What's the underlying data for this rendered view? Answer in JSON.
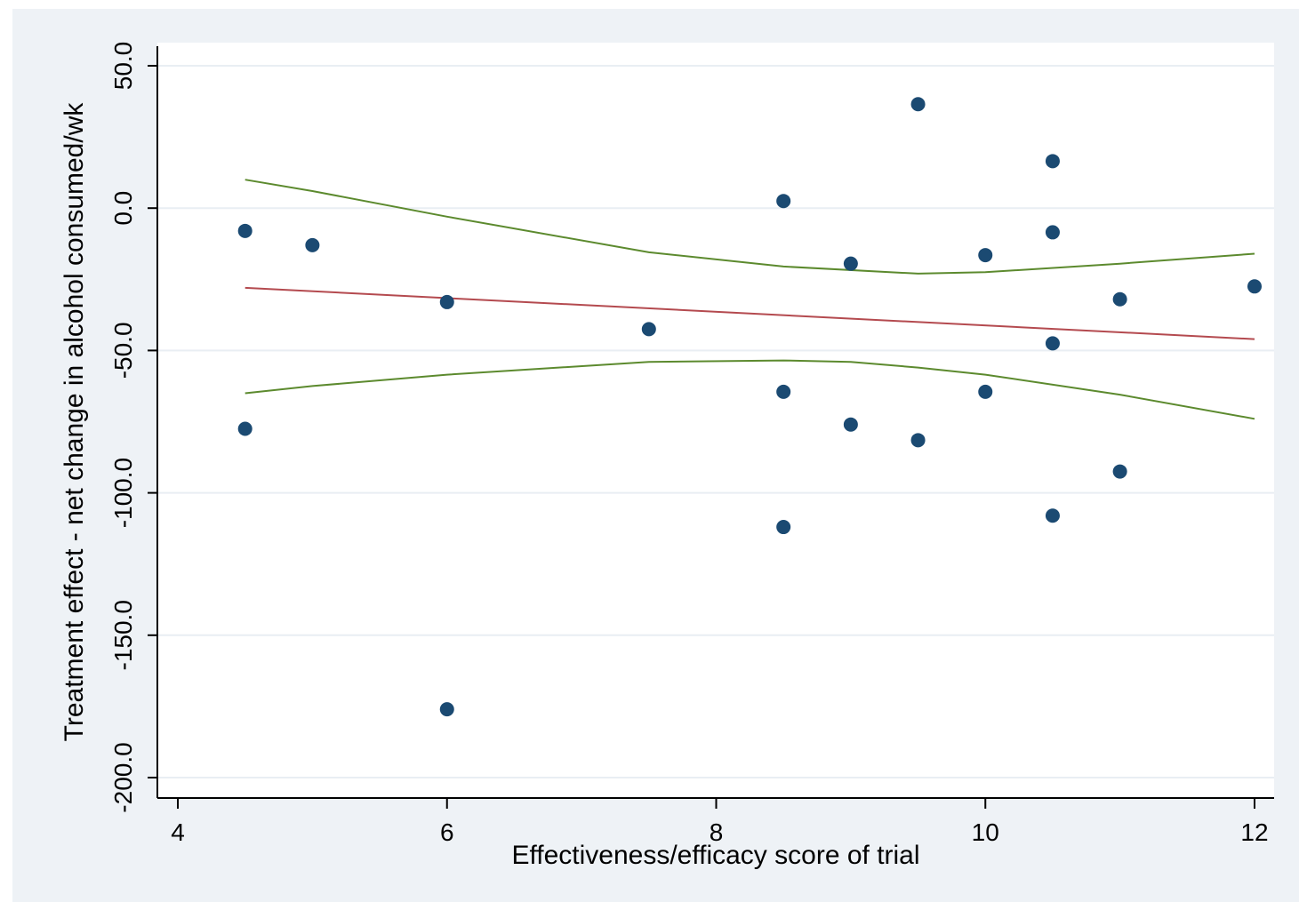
{
  "chart_data": {
    "type": "scatter",
    "xlabel": "Effectiveness/efficacy score of trial",
    "ylabel": "Treatment effect - net change in alcohol consumed/wk",
    "xlim": [
      3.7,
      12.2
    ],
    "ylim": [
      -208,
      58
    ],
    "x_ticks": [
      4,
      6,
      8,
      10,
      12
    ],
    "x_tick_labels": [
      "4",
      "6",
      "8",
      "10",
      "12"
    ],
    "y_ticks": [
      50,
      0,
      -50,
      -100,
      -150,
      -200
    ],
    "y_tick_labels": [
      "50.0",
      "0.0",
      "-50.0",
      "-100.0",
      "-150.0",
      "-200.0"
    ],
    "grid": "horizontal",
    "legend": "none",
    "colors": {
      "background": "#eef2f6",
      "plot_area": "#ffffff",
      "gridline": "#e9eef3",
      "points": "#1b4a72",
      "fit_line": "#b44a4f",
      "ci_band": "#5c8a2e"
    },
    "points": [
      {
        "x": 4.5,
        "y": -8
      },
      {
        "x": 4.5,
        "y": -77.5
      },
      {
        "x": 5,
        "y": -13
      },
      {
        "x": 6,
        "y": -33
      },
      {
        "x": 6,
        "y": -176
      },
      {
        "x": 7.5,
        "y": -42.5
      },
      {
        "x": 8.5,
        "y": 2.5
      },
      {
        "x": 8.5,
        "y": -64.5
      },
      {
        "x": 8.5,
        "y": -112
      },
      {
        "x": 9,
        "y": -19.5
      },
      {
        "x": 9,
        "y": -76
      },
      {
        "x": 9.5,
        "y": 36.5
      },
      {
        "x": 9.5,
        "y": -81.5
      },
      {
        "x": 10,
        "y": -16.5
      },
      {
        "x": 10,
        "y": -64.5
      },
      {
        "x": 10.5,
        "y": 16.5
      },
      {
        "x": 10.5,
        "y": -8.5
      },
      {
        "x": 10.5,
        "y": -47.5
      },
      {
        "x": 10.5,
        "y": -108
      },
      {
        "x": 11,
        "y": -32
      },
      {
        "x": 11,
        "y": -92.5
      },
      {
        "x": 12,
        "y": -27.5
      }
    ],
    "fit_line": [
      {
        "x": 4.5,
        "y": -28
      },
      {
        "x": 12,
        "y": -46
      }
    ],
    "ci_upper": [
      {
        "x": 4.5,
        "y": 10
      },
      {
        "x": 5,
        "y": 6
      },
      {
        "x": 6,
        "y": -3
      },
      {
        "x": 7.5,
        "y": -15.5
      },
      {
        "x": 8.5,
        "y": -20.5
      },
      {
        "x": 9.5,
        "y": -23
      },
      {
        "x": 10,
        "y": -22.5
      },
      {
        "x": 11,
        "y": -19.5
      },
      {
        "x": 12,
        "y": -16
      }
    ],
    "ci_lower": [
      {
        "x": 4.5,
        "y": -65
      },
      {
        "x": 5,
        "y": -62.5
      },
      {
        "x": 6,
        "y": -58.5
      },
      {
        "x": 7.5,
        "y": -54
      },
      {
        "x": 8.5,
        "y": -53.5
      },
      {
        "x": 9,
        "y": -54
      },
      {
        "x": 9.5,
        "y": -56
      },
      {
        "x": 10,
        "y": -58.5
      },
      {
        "x": 11,
        "y": -65.5
      },
      {
        "x": 12,
        "y": -74
      }
    ]
  }
}
